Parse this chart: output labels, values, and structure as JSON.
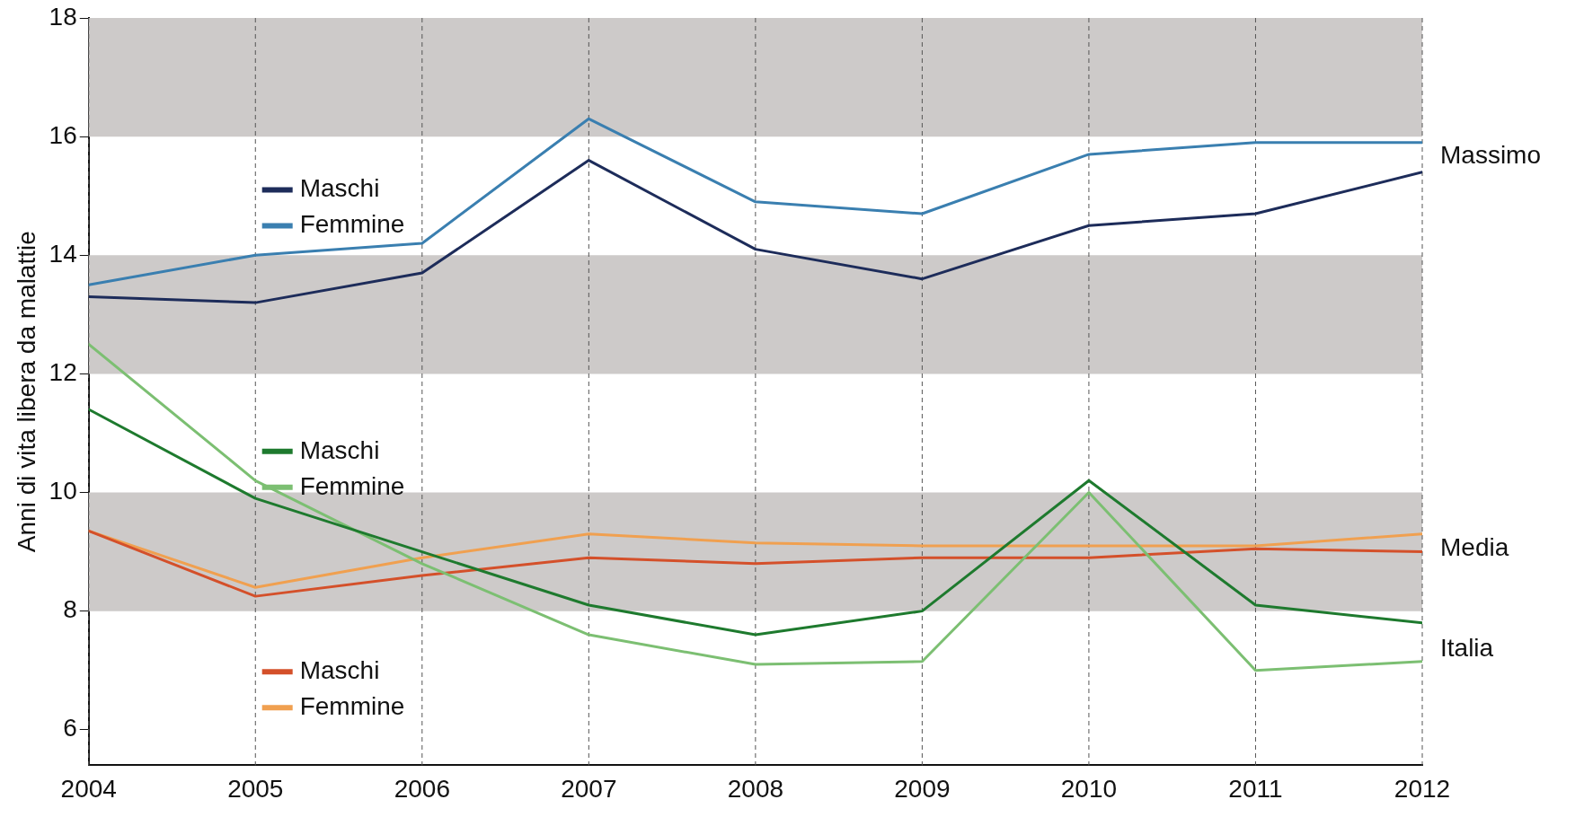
{
  "chart_data": {
    "type": "line",
    "ylabel": "Anni di vita libera da malattie",
    "x": [
      2004,
      2005,
      2006,
      2007,
      2008,
      2009,
      2010,
      2011,
      2012
    ],
    "xlim": [
      2004,
      2012
    ],
    "xticks": [
      2004,
      2005,
      2006,
      2007,
      2008,
      2009,
      2010,
      2011,
      2012
    ],
    "ylim": [
      5.4,
      18
    ],
    "yticks": [
      6,
      8,
      10,
      12,
      14,
      16,
      18
    ],
    "grid": "x",
    "legend": "left",
    "marker": "none",
    "line_style": "solid",
    "series": [
      {
        "name": "Maschi",
        "color": "#1d2c5a",
        "values": [
          13.3,
          13.2,
          13.7,
          15.6,
          14.1,
          13.6,
          14.5,
          14.7,
          15.4
        ]
      },
      {
        "name": "Femmine",
        "color": "#3a7fb0",
        "values": [
          13.5,
          14.0,
          14.2,
          16.3,
          14.9,
          14.7,
          15.7,
          15.9,
          15.9
        ]
      },
      {
        "name": "Maschi",
        "color": "#1e7a2e",
        "values": [
          11.4,
          9.9,
          9.0,
          8.1,
          7.6,
          8.0,
          10.2,
          8.1,
          7.8
        ]
      },
      {
        "name": "Femmine",
        "color": "#7cbf72",
        "values": [
          12.5,
          10.2,
          8.8,
          7.6,
          7.1,
          7.15,
          10.0,
          7.0,
          7.15
        ]
      },
      {
        "name": "Maschi",
        "color": "#d4502a",
        "values": [
          9.35,
          8.25,
          8.6,
          8.9,
          8.8,
          8.9,
          8.9,
          9.05,
          9.0
        ]
      },
      {
        "name": "Femmine",
        "color": "#f0a050",
        "values": [
          9.35,
          8.4,
          8.9,
          9.3,
          9.15,
          9.1,
          9.1,
          9.1,
          9.3
        ]
      }
    ],
    "bands": [
      {
        "axis": "y",
        "from": 16,
        "to": 18,
        "color": "#cdcac9"
      },
      {
        "axis": "y",
        "from": 12,
        "to": 14,
        "color": "#cdcac9"
      },
      {
        "axis": "y",
        "from": 8,
        "to": 10,
        "color": "#cdcac9"
      }
    ],
    "annotations": [
      "Massimo",
      "Media",
      "Italia"
    ]
  }
}
